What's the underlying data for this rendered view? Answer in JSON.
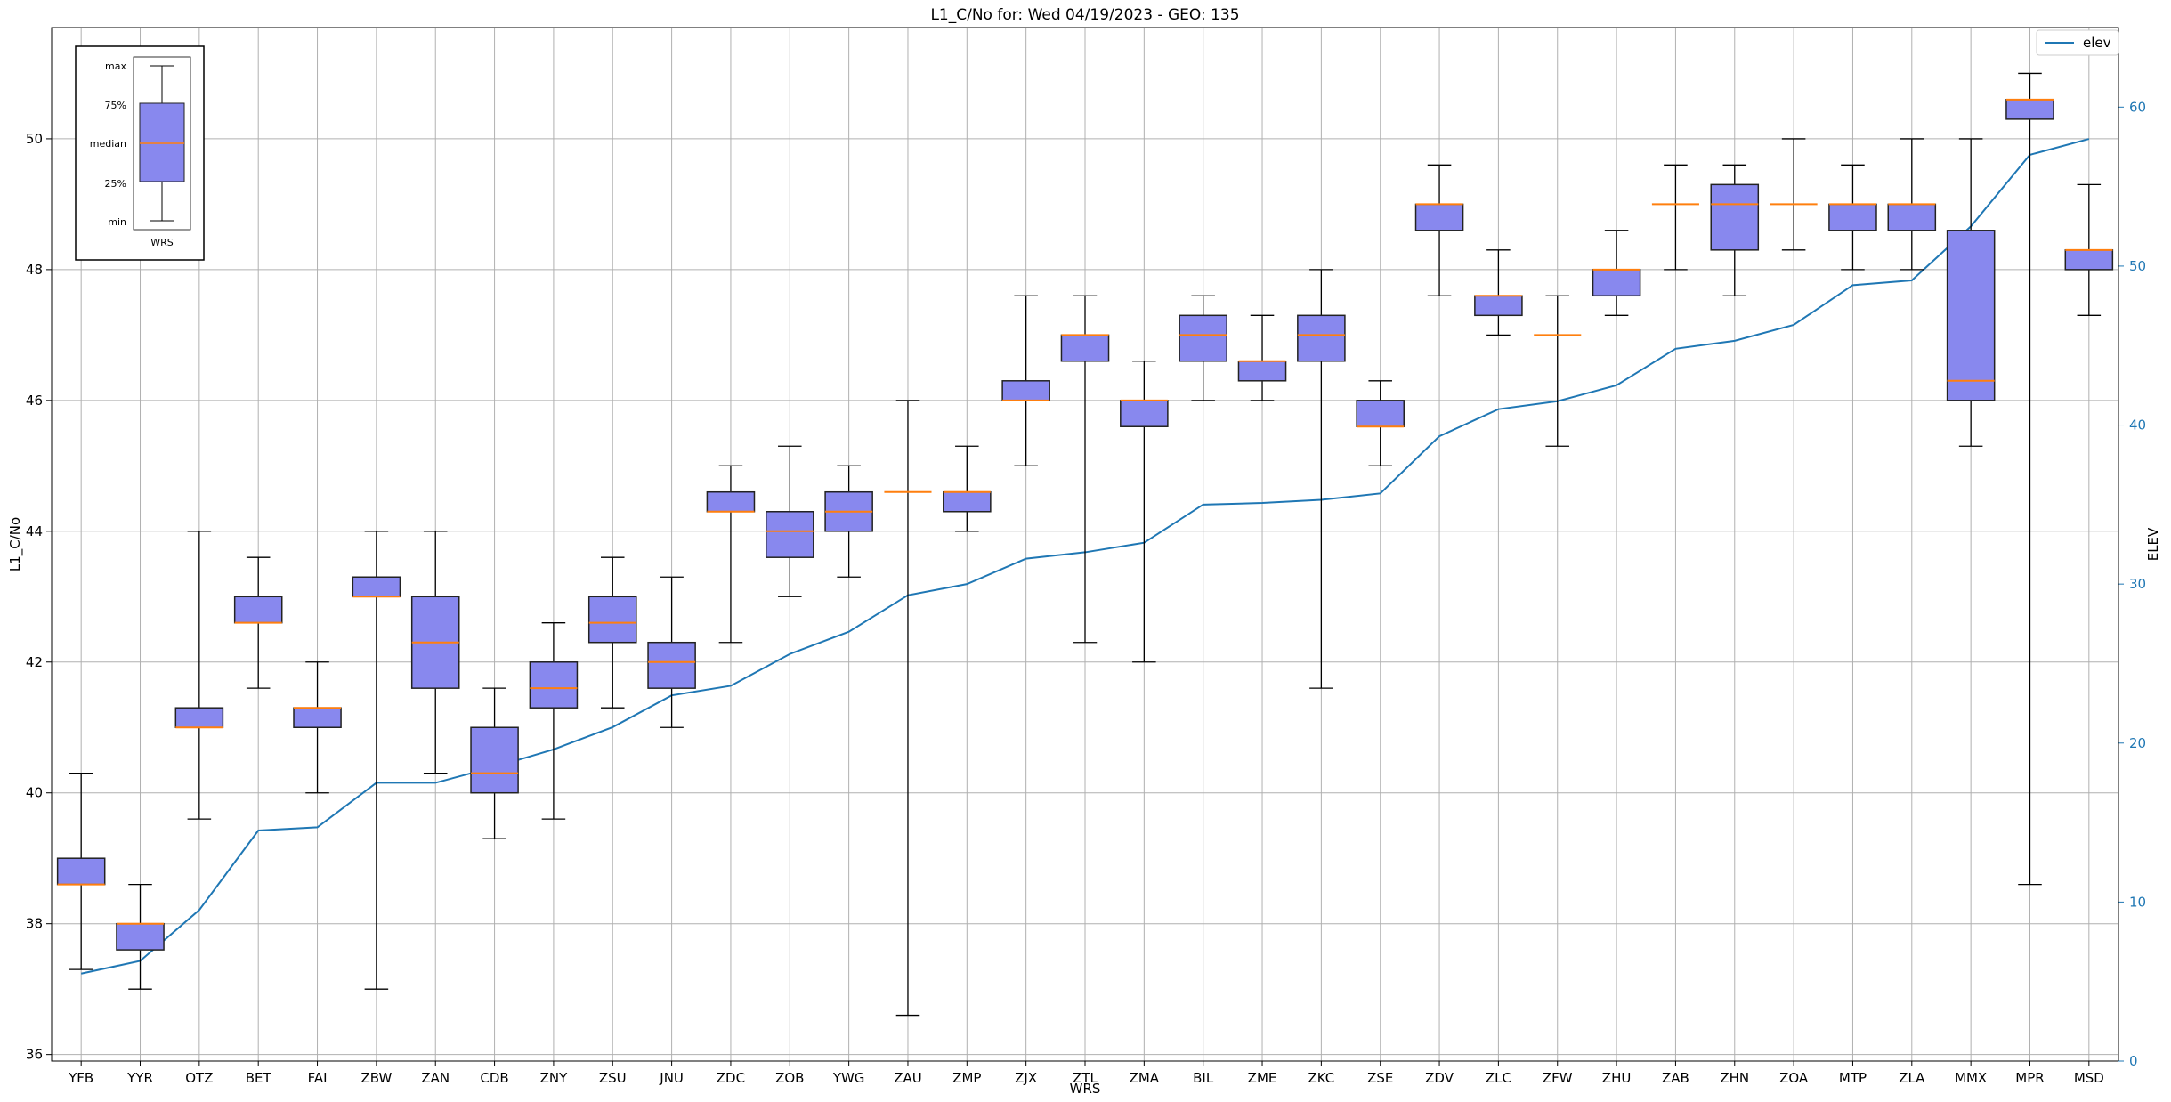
{
  "chart_data": {
    "type": "box",
    "title": "L1_C/No for: Wed 04/19/2023 - GEO: 135",
    "xlabel": "WRS",
    "ylabel": "L1_C/No",
    "y2label": "ELEV",
    "ylim": [
      35.9,
      51.7
    ],
    "y2lim": [
      0,
      65
    ],
    "yticks": [
      36,
      38,
      40,
      42,
      44,
      46,
      48,
      50
    ],
    "y2ticks": [
      0,
      10,
      20,
      30,
      40,
      50,
      60
    ],
    "grid": true,
    "legend": {
      "position": "top-right",
      "entries": [
        "elev"
      ]
    },
    "colors": {
      "box_fill": "#8888ee",
      "median": "#ff7f0e",
      "elev_line": "#1f77b4",
      "box_edge": "#222222"
    },
    "categories": [
      "YFB",
      "YYR",
      "OTZ",
      "BET",
      "FAI",
      "ZBW",
      "ZAN",
      "CDB",
      "ZNY",
      "ZSU",
      "JNU",
      "ZDC",
      "ZOB",
      "YWG",
      "ZAU",
      "ZMP",
      "ZJX",
      "ZTL",
      "ZMA",
      "BIL",
      "ZME",
      "ZKC",
      "ZSE",
      "ZDV",
      "ZLC",
      "ZFW",
      "ZHU",
      "ZAB",
      "ZHN",
      "ZOA",
      "MTP",
      "ZLA",
      "MMX",
      "MPR",
      "MSD"
    ],
    "boxes": [
      {
        "min": 37.3,
        "q1": 38.6,
        "median": 38.6,
        "q3": 39.0,
        "max": 40.3
      },
      {
        "min": 37.0,
        "q1": 37.6,
        "median": 38.0,
        "q3": 38.0,
        "max": 38.6
      },
      {
        "min": 39.6,
        "q1": 41.0,
        "median": 41.0,
        "q3": 41.3,
        "max": 44.0
      },
      {
        "min": 41.6,
        "q1": 42.6,
        "median": 42.6,
        "q3": 43.0,
        "max": 43.6
      },
      {
        "min": 40.0,
        "q1": 41.0,
        "median": 41.3,
        "q3": 41.3,
        "max": 42.0
      },
      {
        "min": 37.0,
        "q1": 43.0,
        "median": 43.0,
        "q3": 43.3,
        "max": 44.0
      },
      {
        "min": 40.3,
        "q1": 41.6,
        "median": 42.3,
        "q3": 43.0,
        "max": 44.0
      },
      {
        "min": 39.3,
        "q1": 40.0,
        "median": 40.3,
        "q3": 41.0,
        "max": 41.6
      },
      {
        "min": 39.6,
        "q1": 41.3,
        "median": 41.6,
        "q3": 42.0,
        "max": 42.6
      },
      {
        "min": 41.3,
        "q1": 42.3,
        "median": 42.6,
        "q3": 43.0,
        "max": 43.6
      },
      {
        "min": 41.0,
        "q1": 41.6,
        "median": 42.0,
        "q3": 42.3,
        "max": 43.3
      },
      {
        "min": 42.3,
        "q1": 44.3,
        "median": 44.3,
        "q3": 44.6,
        "max": 45.0
      },
      {
        "min": 43.0,
        "q1": 43.6,
        "median": 44.0,
        "q3": 44.3,
        "max": 45.3
      },
      {
        "min": 43.3,
        "q1": 44.0,
        "median": 44.3,
        "q3": 44.6,
        "max": 45.0
      },
      {
        "min": 36.6,
        "q1": 44.6,
        "median": 44.6,
        "q3": 44.6,
        "max": 46.0
      },
      {
        "min": 44.0,
        "q1": 44.3,
        "median": 44.6,
        "q3": 44.6,
        "max": 45.3
      },
      {
        "min": 45.0,
        "q1": 46.0,
        "median": 46.0,
        "q3": 46.3,
        "max": 47.6
      },
      {
        "min": 42.3,
        "q1": 46.6,
        "median": 47.0,
        "q3": 47.0,
        "max": 47.6
      },
      {
        "min": 42.0,
        "q1": 45.6,
        "median": 46.0,
        "q3": 46.0,
        "max": 46.6
      },
      {
        "min": 46.0,
        "q1": 46.6,
        "median": 47.0,
        "q3": 47.3,
        "max": 47.6
      },
      {
        "min": 46.0,
        "q1": 46.3,
        "median": 46.6,
        "q3": 46.6,
        "max": 47.3
      },
      {
        "min": 41.6,
        "q1": 46.6,
        "median": 47.0,
        "q3": 47.3,
        "max": 48.0
      },
      {
        "min": 45.0,
        "q1": 45.6,
        "median": 45.6,
        "q3": 46.0,
        "max": 46.3
      },
      {
        "min": 47.6,
        "q1": 48.6,
        "median": 49.0,
        "q3": 49.0,
        "max": 49.6
      },
      {
        "min": 47.0,
        "q1": 47.3,
        "median": 47.6,
        "q3": 47.6,
        "max": 48.3
      },
      {
        "min": 45.3,
        "q1": 47.0,
        "median": 47.0,
        "q3": 47.0,
        "max": 47.6
      },
      {
        "min": 47.3,
        "q1": 47.6,
        "median": 48.0,
        "q3": 48.0,
        "max": 48.6
      },
      {
        "min": 48.0,
        "q1": 49.0,
        "median": 49.0,
        "q3": 49.0,
        "max": 49.6
      },
      {
        "min": 47.6,
        "q1": 48.3,
        "median": 49.0,
        "q3": 49.3,
        "max": 49.6
      },
      {
        "min": 48.3,
        "q1": 49.0,
        "median": 49.0,
        "q3": 49.0,
        "max": 50.0
      },
      {
        "min": 48.0,
        "q1": 48.6,
        "median": 49.0,
        "q3": 49.0,
        "max": 49.6
      },
      {
        "min": 48.0,
        "q1": 48.6,
        "median": 49.0,
        "q3": 49.0,
        "max": 50.0
      },
      {
        "min": 45.3,
        "q1": 46.0,
        "median": 46.3,
        "q3": 48.6,
        "max": 50.0
      },
      {
        "min": 38.6,
        "q1": 50.3,
        "median": 50.6,
        "q3": 50.6,
        "max": 51.0
      },
      {
        "min": 47.3,
        "q1": 48.0,
        "median": 48.3,
        "q3": 48.3,
        "max": 49.3
      }
    ],
    "series": [
      {
        "name": "elev",
        "axis": "right",
        "values": [
          5.5,
          6.3,
          9.5,
          14.5,
          14.7,
          17.5,
          17.5,
          18.5,
          19.6,
          21.0,
          23.0,
          23.6,
          25.6,
          27.0,
          29.3,
          30.0,
          31.6,
          32.0,
          32.6,
          35.0,
          35.1,
          35.3,
          35.7,
          39.3,
          41.0,
          41.5,
          42.5,
          44.8,
          45.3,
          46.3,
          48.8,
          49.1,
          52.5,
          57.0,
          58.0
        ]
      }
    ],
    "inset_legend": {
      "labels": [
        "max",
        "75%",
        "median",
        "25%",
        "min"
      ],
      "xlabel": "WRS"
    }
  }
}
